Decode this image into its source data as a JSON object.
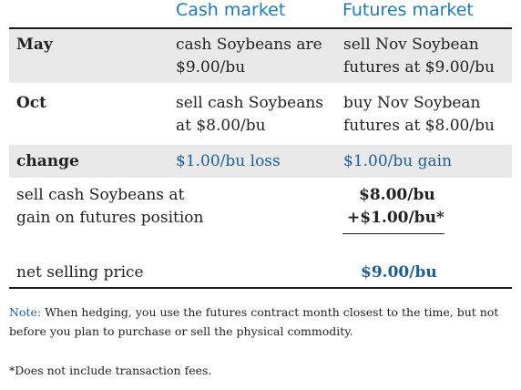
{
  "table": {
    "header": {
      "cash": "Cash market",
      "futures": "Futures market"
    },
    "rows": [
      {
        "label": "May",
        "cash": [
          "cash Soybeans are",
          "$9.00/bu"
        ],
        "futures": [
          "sell Nov Soybean",
          "futures at $9.00/bu"
        ]
      },
      {
        "label": "Oct",
        "cash": [
          "sell cash Soybeans",
          "at $8.00/bu"
        ],
        "futures": [
          "buy Nov Soybean",
          "futures at $8.00/bu"
        ]
      },
      {
        "label": "change",
        "cash": "$1.00/bu loss",
        "futures": "$1.00/bu gain"
      }
    ],
    "calc": {
      "label_lines": [
        "sell cash Soybeans at",
        "gain on futures position"
      ],
      "value_lines": [
        "$8.00/bu",
        "+$1.00/bu*"
      ]
    },
    "net": {
      "label": "net selling price",
      "value": "$9.00/bu"
    }
  },
  "note": {
    "label": "Note:",
    "line1": " When hedging, you use the futures contract month closest to the time, but not",
    "line2": "before you plan to purchase or sell the physical commodity."
  },
  "footnote": "*Does not include transaction fees.",
  "colors": {
    "header_blue": "#1d7ab8",
    "value_blue": "#1d5f95",
    "band_gray": "#e9e9e9"
  }
}
